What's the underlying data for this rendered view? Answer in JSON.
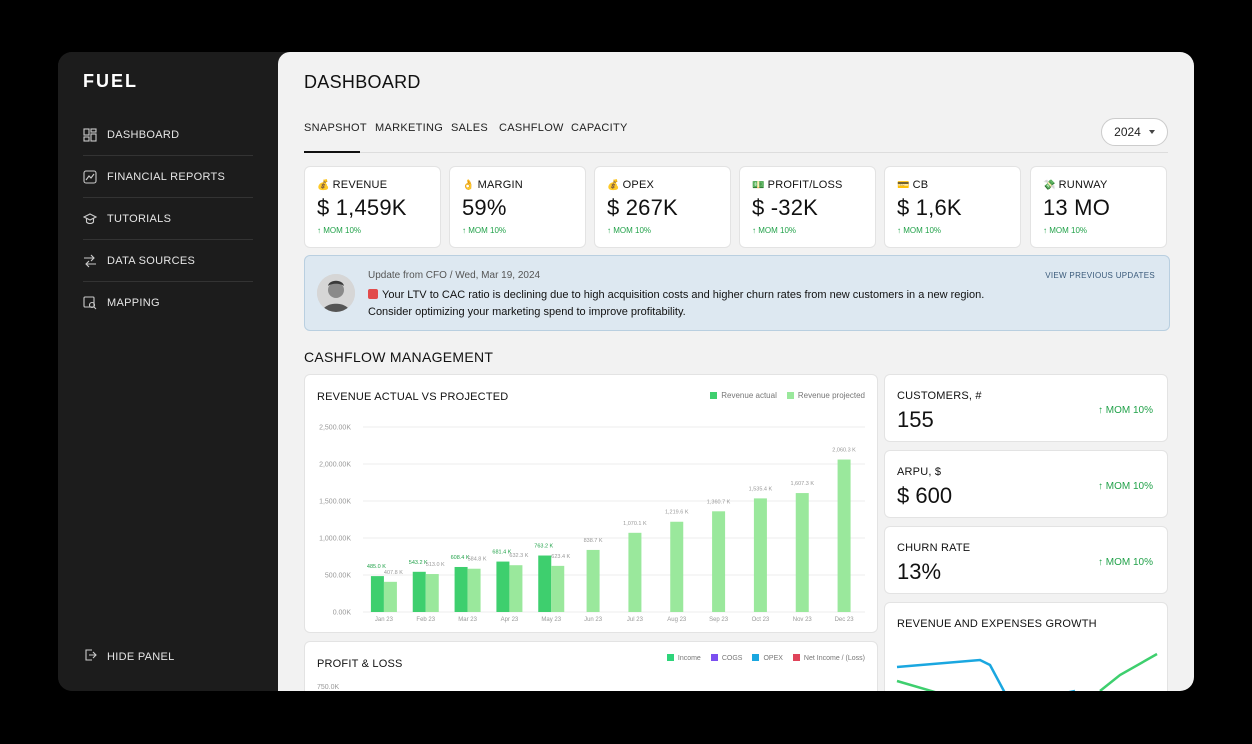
{
  "sidebar": {
    "logo": "FUEL",
    "items": [
      {
        "label": "DASHBOARD",
        "icon": "dashboard-icon"
      },
      {
        "label": "FINANCIAL REPORTS",
        "icon": "report-icon"
      },
      {
        "label": "TUTORIALS",
        "icon": "graduation-cap-icon"
      },
      {
        "label": "DATA SOURCES",
        "icon": "data-sources-icon"
      },
      {
        "label": "MAPPING",
        "icon": "mapping-icon"
      }
    ],
    "hide_panel": "HIDE PANEL"
  },
  "header": {
    "title": "DASHBOARD",
    "tabs": [
      "SNAPSHOT",
      "MARKETING",
      "SALES",
      "CASHFLOW",
      "CAPACITY"
    ],
    "active_tab": "SNAPSHOT",
    "year": "2024"
  },
  "kpis": [
    {
      "emoji": "💰",
      "label": "REVENUE",
      "value": "$ 1,459K",
      "mom": "↑ MOM 10%"
    },
    {
      "emoji": "👌",
      "label": "MARGIN",
      "value": "59%",
      "mom": "↑ MOM 10%"
    },
    {
      "emoji": "💰",
      "label": "OPEX",
      "value": "$ 267K",
      "mom": "↑ MOM 10%"
    },
    {
      "emoji": "💵",
      "label": "PROFIT/LOSS",
      "value": "$ -32K",
      "mom": "↑ MOM 10%"
    },
    {
      "emoji": "💳",
      "label": "CB",
      "value": "$ 1,6K",
      "mom": "↑ MOM 10%"
    },
    {
      "emoji": "💸",
      "label": "RUNWAY",
      "value": "13 MO",
      "mom": "↑ MOM 10%"
    }
  ],
  "update": {
    "meta": "Update from CFO / Wed, Mar 19, 2024",
    "link": "VIEW PREVIOUS UPDATES",
    "line1": "Your LTV to CAC ratio is declining due to high acquisition costs and higher churn rates from new customers in a new region.",
    "line2": "Consider optimizing your marketing spend to improve profitability."
  },
  "section_title": "CASHFLOW MANAGEMENT",
  "revenue_chart": {
    "title": "REVENUE ACTUAL VS PROJECTED",
    "legend": [
      "Revenue actual",
      "Revenue projected"
    ],
    "colors": {
      "actual": "#3ecf6e",
      "projected": "#9ae89c"
    }
  },
  "metrics": [
    {
      "title": "CUSTOMERS, #",
      "value": "155",
      "mom": "↑ MOM 10%"
    },
    {
      "title": "ARPU, $",
      "value": "$ 600",
      "mom": "↑ MOM 10%"
    },
    {
      "title": "CHURN RATE",
      "value": "13%",
      "mom": "↑ MOM 10%"
    }
  ],
  "growth_chart": {
    "title": "REVENUE AND EXPENSES GROWTH"
  },
  "pl_chart": {
    "title": "PROFIT & LOSS",
    "legend": [
      {
        "label": "Income",
        "color": "#2ed47a"
      },
      {
        "label": "COGS",
        "color": "#7b4ff0"
      },
      {
        "label": "OPEX",
        "color": "#1aa7e0"
      },
      {
        "label": "Net Income / (Loss)",
        "color": "#e0445a"
      }
    ],
    "top_tick": "750.0K"
  },
  "chart_data": [
    {
      "type": "bar",
      "title": "REVENUE ACTUAL VS PROJECTED",
      "categories": [
        "Jan 23",
        "Feb 23",
        "Mar 23",
        "Apr 23",
        "May 23",
        "Jun 23",
        "Jul 23",
        "Aug 23",
        "Sep 23",
        "Oct 23",
        "Nov 23",
        "Dec 23"
      ],
      "series": [
        {
          "name": "Revenue actual",
          "values": [
            485.0,
            543.2,
            608.4,
            681.4,
            763.2,
            null,
            null,
            null,
            null,
            null,
            null,
            null
          ],
          "labels": [
            "485.0 K",
            "543.2 K",
            "608.4 K",
            "681.4 K",
            "763.2 K",
            "",
            "",
            "",
            "",
            "",
            "",
            ""
          ]
        },
        {
          "name": "Revenue projected",
          "values": [
            407.8,
            513.0,
            584.8,
            632.3,
            623.4,
            838.7,
            1070.1,
            1219.6,
            1360.7,
            1535.4,
            1607.3,
            2060.3
          ],
          "labels": [
            "407.8 K",
            "513.0 K",
            "584.8 K",
            "632.3 K",
            "623.4 K",
            "838.7 K",
            "1,070.1 K",
            "1,219.6 K",
            "1,360.7 K",
            "1,535.4 K",
            "1,607.3 K",
            "2,060.3 K"
          ]
        }
      ],
      "yticks": [
        "0.00K",
        "500.00K",
        "1,000.00K",
        "1,500.00K",
        "2,000.00K",
        "2,500.00K"
      ],
      "ylim": [
        0,
        2500
      ],
      "grid": true,
      "legend_position": "top-right"
    }
  ]
}
